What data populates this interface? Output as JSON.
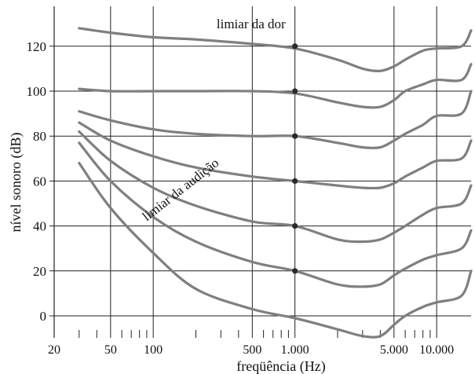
{
  "chart_data": {
    "type": "line",
    "xlabel": "freqüência (Hz)",
    "ylabel": "nível sonoro (dB)",
    "x_scale": "log",
    "x_ticks": [
      {
        "value": 20,
        "label": "20"
      },
      {
        "value": 50,
        "label": "50"
      },
      {
        "value": 100,
        "label": "100"
      },
      {
        "value": 500,
        "label": "500"
      },
      {
        "value": 1000,
        "label": "1.000"
      },
      {
        "value": 5000,
        "label": "5.000"
      },
      {
        "value": 10000,
        "label": "10.000"
      }
    ],
    "x_minor_ticks": [
      30,
      40,
      60,
      70,
      80,
      90,
      200,
      300,
      400,
      600,
      700,
      800,
      900,
      2000,
      3000,
      4000,
      6000,
      7000,
      8000,
      9000
    ],
    "y_ticks": [
      {
        "value": 0,
        "label": "0"
      },
      {
        "value": 20,
        "label": "20"
      },
      {
        "value": 40,
        "label": "40"
      },
      {
        "value": 60,
        "label": "60"
      },
      {
        "value": 80,
        "label": "80"
      },
      {
        "value": 100,
        "label": "100"
      },
      {
        "value": 120,
        "label": "120"
      }
    ],
    "xlim": [
      20,
      20000
    ],
    "ylim": [
      -10,
      136
    ],
    "grid": true,
    "annotations": [
      {
        "text": "limiar da dor",
        "x": 280,
        "y": 128
      },
      {
        "text": "limiar da audição",
        "x": 90,
        "y": 42,
        "rotation": -38
      }
    ],
    "markers": [
      {
        "x": 1000,
        "y": 20
      },
      {
        "x": 1000,
        "y": 40
      },
      {
        "x": 1000,
        "y": 60
      },
      {
        "x": 1000,
        "y": 80
      },
      {
        "x": 1000,
        "y": 100
      },
      {
        "x": 1000,
        "y": 120
      }
    ],
    "series": [
      {
        "x": [
          30,
          50,
          100,
          200,
          500,
          1000,
          2000,
          3000,
          4000,
          5000,
          6000,
          8000,
          10000,
          15000,
          20000
        ],
        "y": [
          68,
          48,
          28,
          12,
          3,
          -1,
          -6,
          -9,
          -9,
          -4,
          0,
          4,
          6,
          9,
          20
        ]
      },
      {
        "x": [
          30,
          50,
          100,
          200,
          500,
          1000,
          2000,
          3000,
          4000,
          5000,
          6000,
          8000,
          10000,
          15000,
          20000
        ],
        "y": [
          77,
          60,
          44,
          33,
          24,
          20,
          14,
          13,
          14,
          18,
          21,
          25,
          27,
          30,
          38
        ]
      },
      {
        "x": [
          30,
          50,
          100,
          200,
          500,
          1000,
          2000,
          3000,
          4000,
          5000,
          6000,
          8000,
          10000,
          15000,
          20000
        ],
        "y": [
          82,
          69,
          57,
          49,
          42,
          40,
          34,
          33,
          34,
          37,
          40,
          45,
          48,
          50,
          58
        ]
      },
      {
        "x": [
          30,
          50,
          100,
          200,
          500,
          1000,
          2000,
          3000,
          4000,
          5000,
          6000,
          8000,
          10000,
          15000,
          20000
        ],
        "y": [
          86,
          78,
          71,
          66,
          62,
          60,
          58,
          57,
          57,
          59,
          62,
          66,
          69,
          70,
          78
        ]
      },
      {
        "x": [
          30,
          50,
          100,
          200,
          500,
          1000,
          2000,
          3000,
          4000,
          5000,
          6000,
          8000,
          10000,
          15000,
          20000
        ],
        "y": [
          91,
          87,
          83,
          81,
          80,
          80,
          77,
          75,
          75,
          78,
          81,
          85,
          89,
          90,
          100
        ]
      },
      {
        "x": [
          30,
          50,
          100,
          200,
          500,
          1000,
          2000,
          3000,
          4000,
          5000,
          6000,
          8000,
          10000,
          15000,
          20000
        ],
        "y": [
          101,
          100,
          100,
          100,
          100,
          99,
          95,
          93,
          93,
          96,
          100,
          103,
          105,
          105,
          112
        ]
      },
      {
        "x": [
          30,
          50,
          100,
          200,
          500,
          1000,
          2000,
          3000,
          4000,
          5000,
          6000,
          8000,
          10000,
          15000,
          20000
        ],
        "y": [
          128,
          126,
          124,
          123,
          121,
          119,
          114,
          110,
          109,
          111,
          114,
          118,
          119,
          120,
          127
        ]
      }
    ]
  }
}
